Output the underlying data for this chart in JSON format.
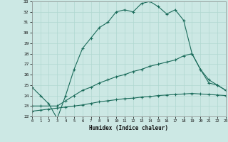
{
  "xlabel": "Humidex (Indice chaleur)",
  "bg_color": "#cce8e4",
  "grid_color": "#b0d8d0",
  "line_color": "#1a6b5a",
  "x_min": 0,
  "x_max": 23,
  "y_min": 22,
  "y_max": 33,
  "series1_x": [
    0,
    1,
    2,
    3,
    4,
    5,
    6,
    7,
    8,
    9,
    10,
    11,
    12,
    13,
    14,
    15,
    16,
    17,
    18,
    19,
    20,
    21,
    22,
    23
  ],
  "series1_y": [
    24.8,
    24.0,
    23.2,
    21.8,
    24.0,
    26.5,
    28.5,
    29.5,
    30.5,
    31.0,
    32.0,
    32.2,
    32.0,
    32.8,
    33.0,
    32.5,
    31.8,
    32.2,
    31.2,
    28.0,
    26.5,
    25.2,
    25.0,
    24.5
  ],
  "series2_x": [
    0,
    1,
    3,
    4,
    5,
    6,
    7,
    8,
    9,
    10,
    11,
    12,
    13,
    14,
    15,
    16,
    17,
    18,
    19,
    20,
    21,
    22,
    23
  ],
  "series2_y": [
    23.0,
    23.0,
    23.0,
    23.5,
    24.0,
    24.5,
    24.8,
    25.2,
    25.5,
    25.8,
    26.0,
    26.3,
    26.5,
    26.8,
    27.0,
    27.2,
    27.4,
    27.8,
    28.0,
    26.5,
    25.5,
    25.0,
    24.5
  ],
  "series3_x": [
    0,
    1,
    2,
    3,
    4,
    5,
    6,
    7,
    8,
    9,
    10,
    11,
    12,
    13,
    14,
    15,
    16,
    17,
    18,
    19,
    20,
    21,
    22,
    23
  ],
  "series3_y": [
    22.5,
    22.6,
    22.7,
    22.8,
    22.9,
    23.0,
    23.1,
    23.25,
    23.4,
    23.5,
    23.6,
    23.7,
    23.75,
    23.85,
    23.9,
    24.0,
    24.05,
    24.1,
    24.15,
    24.2,
    24.15,
    24.1,
    24.05,
    24.0
  ]
}
